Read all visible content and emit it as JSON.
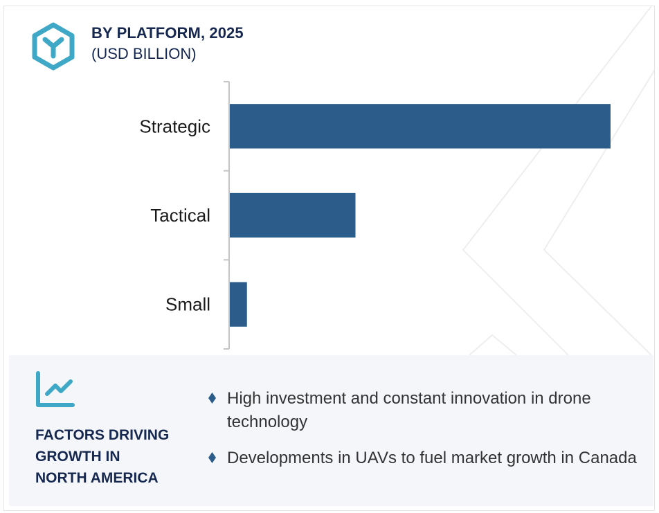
{
  "header": {
    "icon": "hexagon-y-icon",
    "title": "BY PLATFORM, 2025",
    "subtitle": "(USD BILLION)"
  },
  "colors": {
    "bar": "#2c5d8a",
    "accent": "#3ea8c6",
    "title": "#16284f",
    "panel_bg": "#f4f6fa",
    "bullet": "#2c5d8a"
  },
  "chart_data": {
    "type": "bar",
    "orientation": "horizontal",
    "title": "BY PLATFORM, 2025",
    "subtitle": "(USD BILLION)",
    "categories": [
      "Strategic",
      "Tactical",
      "Small"
    ],
    "values": [
      100,
      33,
      4.5
    ],
    "value_note": "Values unlabeled in image; estimated relative to Strategic = 100",
    "xlabel": "",
    "ylabel": "",
    "xlim": [
      0,
      100
    ],
    "grid": false,
    "legend": "none",
    "data_labels": false
  },
  "panel": {
    "icon": "line-chart-icon",
    "title_lines": [
      "FACTORS DRIVING",
      "GROWTH IN",
      "NORTH AMERICA"
    ],
    "bullets": [
      {
        "icon": "diamond-bullet-icon",
        "text": "High investment and constant innovation in drone technology"
      },
      {
        "icon": "diamond-bullet-icon",
        "text": "Developments in UAVs to fuel market growth in Canada"
      }
    ]
  }
}
